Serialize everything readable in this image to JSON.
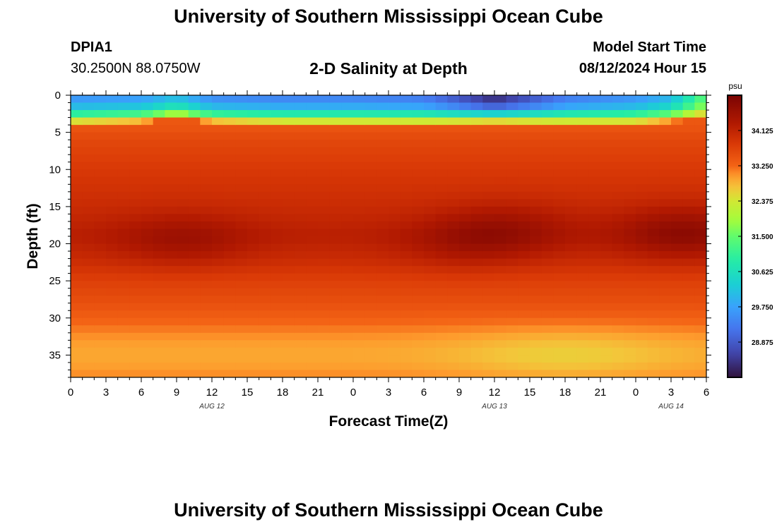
{
  "header": {
    "title": "University of Southern Mississippi Ocean Cube",
    "station_id": "DPIA1",
    "location": "30.2500N  88.0750W",
    "subtitle": "2-D Salinity at Depth",
    "model_start_label": "Model Start Time",
    "model_start_value": "08/12/2024 Hour 15"
  },
  "footer": {
    "title": "University of Southern Mississippi Ocean Cube"
  },
  "chart_data": {
    "type": "heatmap",
    "title": "2-D Salinity at Depth",
    "xlabel": "Forecast Time(Z)",
    "ylabel": "Depth (ft)",
    "x_range": [
      0,
      54
    ],
    "y_range": [
      0,
      38
    ],
    "y_inverted": true,
    "x_tick_hours": [
      0,
      3,
      6,
      9,
      12,
      15,
      18,
      21,
      24,
      27,
      30,
      33,
      36,
      39,
      42,
      45,
      48,
      51,
      54
    ],
    "x_tick_labels": [
      "0",
      "3",
      "6",
      "9",
      "12",
      "15",
      "18",
      "21",
      "0",
      "3",
      "6",
      "9",
      "12",
      "15",
      "18",
      "21",
      "0",
      "3",
      "6"
    ],
    "date_labels": [
      {
        "hour": 12,
        "label": "AUG 12"
      },
      {
        "hour": 36,
        "label": "AUG 13"
      },
      {
        "hour": 51,
        "label": "AUG 14"
      }
    ],
    "y_ticks": [
      0,
      5,
      10,
      15,
      20,
      25,
      30,
      35
    ],
    "colorbar": {
      "unit": "psu",
      "min": 28.0,
      "max": 35.0,
      "ticks": [
        34.125,
        33.25,
        32.375,
        31.5,
        30.625,
        29.75,
        28.875
      ],
      "tick_labels": [
        "34.125",
        "33.250",
        "32.375",
        "31.500",
        "30.625",
        "29.750",
        "28.875"
      ]
    },
    "color_stops": [
      [
        28.0,
        "#30123b"
      ],
      [
        28.6,
        "#4145ab"
      ],
      [
        29.2,
        "#4675ed"
      ],
      [
        29.75,
        "#39a2fc"
      ],
      [
        30.3,
        "#1bcfd4"
      ],
      [
        30.9,
        "#24eca6"
      ],
      [
        31.5,
        "#61fc6c"
      ],
      [
        31.9,
        "#a4fc3b"
      ],
      [
        32.375,
        "#d1e834"
      ],
      [
        32.7,
        "#f3c63a"
      ],
      [
        33.0,
        "#fe9b2d"
      ],
      [
        33.25,
        "#f36315"
      ],
      [
        33.8,
        "#d93806"
      ],
      [
        34.3,
        "#b11901"
      ],
      [
        35.0,
        "#7a0403"
      ]
    ],
    "surface_salinity_psu": {
      "hours": [
        0,
        6,
        9,
        12,
        18,
        24,
        30,
        33,
        36,
        42,
        48,
        51,
        54
      ],
      "values": [
        29.6,
        29.7,
        30.1,
        29.5,
        29.4,
        29.4,
        29.3,
        28.8,
        28.3,
        29.3,
        29.6,
        30.0,
        31.5
      ]
    },
    "mixed_layer_ft": {
      "hours": [
        0,
        6,
        9,
        12,
        18,
        24,
        30,
        36,
        42,
        48,
        51,
        54
      ],
      "values": [
        4.0,
        3.8,
        3.2,
        3.8,
        4.0,
        4.0,
        4.0,
        3.8,
        4.0,
        4.0,
        3.7,
        3.2
      ]
    },
    "deep_salinity_profile_psu": {
      "depths": [
        4,
        6,
        10,
        15,
        19,
        22,
        25,
        28,
        31,
        33,
        35,
        37,
        38
      ],
      "values": [
        33.4,
        33.6,
        33.8,
        34.0,
        34.2,
        34.0,
        33.7,
        33.5,
        33.2,
        33.0,
        32.9,
        33.0,
        33.1
      ]
    },
    "salinity_maxima": [
      {
        "hour": 9.5,
        "depth_ft": 19.5,
        "psu": 34.6
      },
      {
        "hour": 33.5,
        "depth_ft": 20.0,
        "psu": 34.5
      },
      {
        "hour": 37.0,
        "depth_ft": 18.0,
        "psu": 34.6
      },
      {
        "hour": 52.0,
        "depth_ft": 18.5,
        "psu": 34.8
      }
    ],
    "fresher_lens": {
      "hour": 42,
      "depth_ft": 35,
      "psu": 32.6
    }
  }
}
